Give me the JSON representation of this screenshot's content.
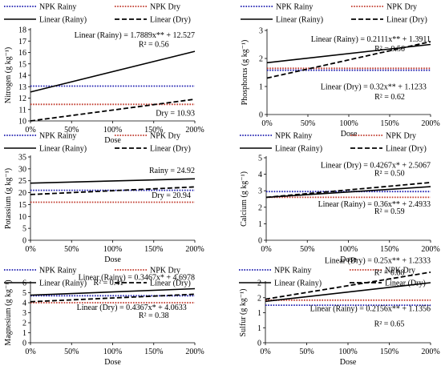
{
  "figure": {
    "background": "#ffffff"
  },
  "styles": {
    "npk_rainy": {
      "color": "#1f1fb0",
      "dash": "dot"
    },
    "npk_dry": {
      "color": "#c0392b",
      "dash": "dot"
    },
    "linear_rainy": {
      "color": "#000000",
      "dash": "solid"
    },
    "linear_dry": {
      "color": "#000000",
      "dash": "dash"
    }
  },
  "chart_data": [
    {
      "type": "line",
      "ylabel": "Nitrogen (g kg⁻¹)",
      "xlabel": "Dose",
      "x_ticks": [
        "0%",
        "50%",
        "100%",
        "150%",
        "200%"
      ],
      "xlim": [
        0,
        200
      ],
      "ylim": [
        10,
        18
      ],
      "y_ticks": [
        "10",
        "11",
        "12",
        "13",
        "14",
        "15",
        "16",
        "17",
        "18"
      ],
      "legend": [
        "NPK Rainy",
        "NPK Dry",
        "Linear (Rainy)",
        "Linear (Dry)"
      ],
      "series": [
        {
          "name": "NPK Rainy",
          "style": "npk_rainy",
          "x": [
            0,
            200
          ],
          "y": [
            13.05,
            13.05
          ]
        },
        {
          "name": "NPK Dry",
          "style": "npk_dry",
          "x": [
            0,
            200
          ],
          "y": [
            11.45,
            11.45
          ]
        },
        {
          "name": "Linear (Rainy)",
          "style": "linear_rainy",
          "x": [
            0,
            200
          ],
          "y": [
            12.53,
            16.1
          ]
        },
        {
          "name": "Linear (Dry)",
          "style": "linear_dry",
          "x": [
            0,
            200
          ],
          "y": [
            10.0,
            11.9
          ]
        }
      ],
      "annotations": [
        {
          "text": "Linear (Rainy) = 1.7889x** + 12.527",
          "x": 200,
          "y": 17.3,
          "anchor": "end"
        },
        {
          "text": "R² = 0.56",
          "x": 150,
          "y": 16.5,
          "anchor": "middle"
        },
        {
          "text": "Dry = 10.93",
          "x": 200,
          "y": 10.45,
          "anchor": "end"
        }
      ]
    },
    {
      "type": "line",
      "ylabel": "Phosphorus (g kg⁻¹)",
      "xlabel": "Dose",
      "x_ticks": [
        "0%",
        "50%",
        "100%",
        "150%",
        "200%"
      ],
      "xlim": [
        0,
        200
      ],
      "ylim": [
        0,
        3
      ],
      "y_ticks": [
        "0",
        "1",
        "2",
        "3"
      ],
      "legend": [
        "NPK Rainy",
        "NPK Dry",
        "Linear (Rainy)",
        "Linear (Dry)"
      ],
      "series": [
        {
          "name": "NPK Rainy",
          "style": "npk_rainy",
          "x": [
            0,
            200
          ],
          "y": [
            1.58,
            1.58
          ]
        },
        {
          "name": "NPK Dry",
          "style": "npk_dry",
          "x": [
            0,
            200
          ],
          "y": [
            1.65,
            1.65
          ]
        },
        {
          "name": "Linear (Rainy)",
          "style": "linear_rainy",
          "x": [
            0,
            200
          ],
          "y": [
            1.85,
            2.5
          ]
        },
        {
          "name": "Linear (Dry)",
          "style": "linear_dry",
          "x": [
            0,
            200
          ],
          "y": [
            1.3,
            2.6
          ]
        }
      ],
      "annotations": [
        {
          "text": "Linear (Rainy) = 0.2111x** + 1.3911",
          "x": 200,
          "y": 2.6,
          "anchor": "end"
        },
        {
          "text": "R² = 0.56",
          "x": 150,
          "y": 2.26,
          "anchor": "middle"
        },
        {
          "text": "Linear (Dry) = 0.32x** + 1.1233",
          "x": 195,
          "y": 0.9,
          "anchor": "end"
        },
        {
          "text": "R² = 0.62",
          "x": 150,
          "y": 0.55,
          "anchor": "middle"
        }
      ]
    },
    {
      "type": "line",
      "ylabel": "Potassium (g kg⁻¹)",
      "xlabel": "Dose",
      "x_ticks": [
        "0%",
        "50%",
        "100%",
        "150%",
        "200%"
      ],
      "xlim": [
        0,
        200
      ],
      "ylim": [
        0,
        35
      ],
      "y_ticks": [
        "0",
        "5",
        "10",
        "15",
        "20",
        "25",
        "30",
        "35"
      ],
      "legend": [
        "NPK Rainy",
        "NPK Dry",
        "Linear (Rainy)",
        "Linear (Dry)"
      ],
      "series": [
        {
          "name": "NPK Rainy",
          "style": "npk_rainy",
          "x": [
            0,
            200
          ],
          "y": [
            21.0,
            21.0
          ]
        },
        {
          "name": "NPK Dry",
          "style": "npk_dry",
          "x": [
            0,
            200
          ],
          "y": [
            16.0,
            16.0
          ]
        },
        {
          "name": "Linear (Rainy)",
          "style": "linear_rainy",
          "x": [
            0,
            200
          ],
          "y": [
            24.0,
            25.8
          ]
        },
        {
          "name": "Linear (Dry)",
          "style": "linear_dry",
          "x": [
            0,
            200
          ],
          "y": [
            19.2,
            22.4
          ]
        }
      ],
      "annotations": [
        {
          "text": "Rainy = 24.92",
          "x": 200,
          "y": 28.3,
          "anchor": "end"
        },
        {
          "text": "Dry = 20.94",
          "x": 195,
          "y": 17.8,
          "anchor": "end"
        }
      ]
    },
    {
      "type": "line",
      "ylabel": "Calcium (g kg⁻¹)",
      "xlabel": "Dose",
      "x_ticks": [
        "0%",
        "50%",
        "100%",
        "150%",
        "200%"
      ],
      "xlim": [
        0,
        200
      ],
      "ylim": [
        0,
        5
      ],
      "y_ticks": [
        "0",
        "1",
        "2",
        "3",
        "4",
        "5"
      ],
      "legend": [
        "NPK Rainy",
        "NPK Dry",
        "Linear (Rainy)",
        "Linear (Dry)"
      ],
      "series": [
        {
          "name": "NPK Rainy",
          "style": "npk_rainy",
          "x": [
            0,
            200
          ],
          "y": [
            2.95,
            2.95
          ]
        },
        {
          "name": "NPK Dry",
          "style": "npk_dry",
          "x": [
            0,
            200
          ],
          "y": [
            2.6,
            2.6
          ]
        },
        {
          "name": "Linear (Rainy)",
          "style": "linear_rainy",
          "x": [
            0,
            200
          ],
          "y": [
            2.6,
            3.25
          ]
        },
        {
          "name": "Linear (Dry)",
          "style": "linear_dry",
          "x": [
            0,
            200
          ],
          "y": [
            2.6,
            3.5
          ]
        }
      ],
      "annotations": [
        {
          "text": "Linear (Dry) = 0.4267x* + 2.5067",
          "x": 200,
          "y": 4.4,
          "anchor": "end"
        },
        {
          "text": "R² = 0.50",
          "x": 150,
          "y": 3.9,
          "anchor": "middle"
        },
        {
          "text": "Linear (Rainy) = 0.36x** + 2.4933",
          "x": 200,
          "y": 2.05,
          "anchor": "end"
        },
        {
          "text": "R² = 0.59",
          "x": 150,
          "y": 1.6,
          "anchor": "middle"
        }
      ]
    },
    {
      "type": "line",
      "ylabel": "Magnesium (g kg⁻¹)",
      "xlabel": "Dose",
      "x_ticks": [
        "0%",
        "50%",
        "100%",
        "150%",
        "200%"
      ],
      "xlim": [
        0,
        200
      ],
      "ylim": [
        0,
        6
      ],
      "y_ticks": [
        "0",
        "1",
        "2",
        "3",
        "4",
        "5",
        "6"
      ],
      "legend": [
        "NPK Rainy",
        "NPK Dry",
        "Linear (Rainy)",
        "Linear (Dry)"
      ],
      "series": [
        {
          "name": "NPK Rainy",
          "style": "npk_rainy",
          "x": [
            0,
            200
          ],
          "y": [
            4.7,
            4.7
          ]
        },
        {
          "name": "NPK Dry",
          "style": "npk_dry",
          "x": [
            0,
            200
          ],
          "y": [
            4.0,
            4.0
          ]
        },
        {
          "name": "Linear (Rainy)",
          "style": "linear_rainy",
          "x": [
            0,
            200
          ],
          "y": [
            4.75,
            5.4
          ]
        },
        {
          "name": "Linear (Dry)",
          "style": "linear_dry",
          "x": [
            0,
            200
          ],
          "y": [
            4.1,
            4.85
          ]
        }
      ],
      "annotations": [
        {
          "text": "Linear (Rainy) = 0.3467x* + 4.6978",
          "x": 200,
          "y": 6.3,
          "anchor": "end"
        },
        {
          "text": "R² = 0.41",
          "x": 95,
          "y": 5.75,
          "anchor": "middle"
        },
        {
          "text": "Linear (Dry) = 0.4367x* + 4.0633",
          "x": 190,
          "y": 3.3,
          "anchor": "end"
        },
        {
          "text": "R² = 0.38",
          "x": 150,
          "y": 2.5,
          "anchor": "middle"
        }
      ]
    },
    {
      "type": "line",
      "ylabel": "Sulfur (g kg⁻¹)",
      "xlabel": "Dose",
      "x_ticks": [
        "0%",
        "50%",
        "100%",
        "150%",
        "200%"
      ],
      "xlim": [
        0,
        200
      ],
      "ylim": [
        0,
        2
      ],
      "y_ticks": [
        "0",
        "1",
        "1",
        "2",
        "2"
      ],
      "legend": [
        "NPK Rainy",
        "NPK Dry",
        "Linear (Rainy)",
        "Linear (Dry)"
      ],
      "series": [
        {
          "name": "NPK Rainy",
          "style": "npk_rainy",
          "x": [
            0,
            200
          ],
          "y": [
            1.25,
            1.25
          ]
        },
        {
          "name": "NPK Dry",
          "style": "npk_dry",
          "x": [
            0,
            200
          ],
          "y": [
            1.42,
            1.42
          ]
        },
        {
          "name": "Linear (Rainy)",
          "style": "linear_rainy",
          "x": [
            0,
            200
          ],
          "y": [
            1.38,
            2.0
          ]
        },
        {
          "name": "Linear (Dry)",
          "style": "linear_dry",
          "x": [
            0,
            200
          ],
          "y": [
            1.45,
            2.35
          ]
        }
      ],
      "annotations": [
        {
          "text": "Linear (Dry) = 0.25x** + 1.2333",
          "x": 200,
          "y": 2.65,
          "anchor": "end"
        },
        {
          "text": "R² = 0.88",
          "x": 150,
          "y": 2.25,
          "anchor": "middle"
        },
        {
          "text": "Linear (Rainy) = 0.2156x** + 1.1356",
          "x": 200,
          "y": 1.05,
          "anchor": "end"
        },
        {
          "text": "R² = 0.65",
          "x": 150,
          "y": 0.55,
          "anchor": "middle"
        }
      ]
    }
  ]
}
